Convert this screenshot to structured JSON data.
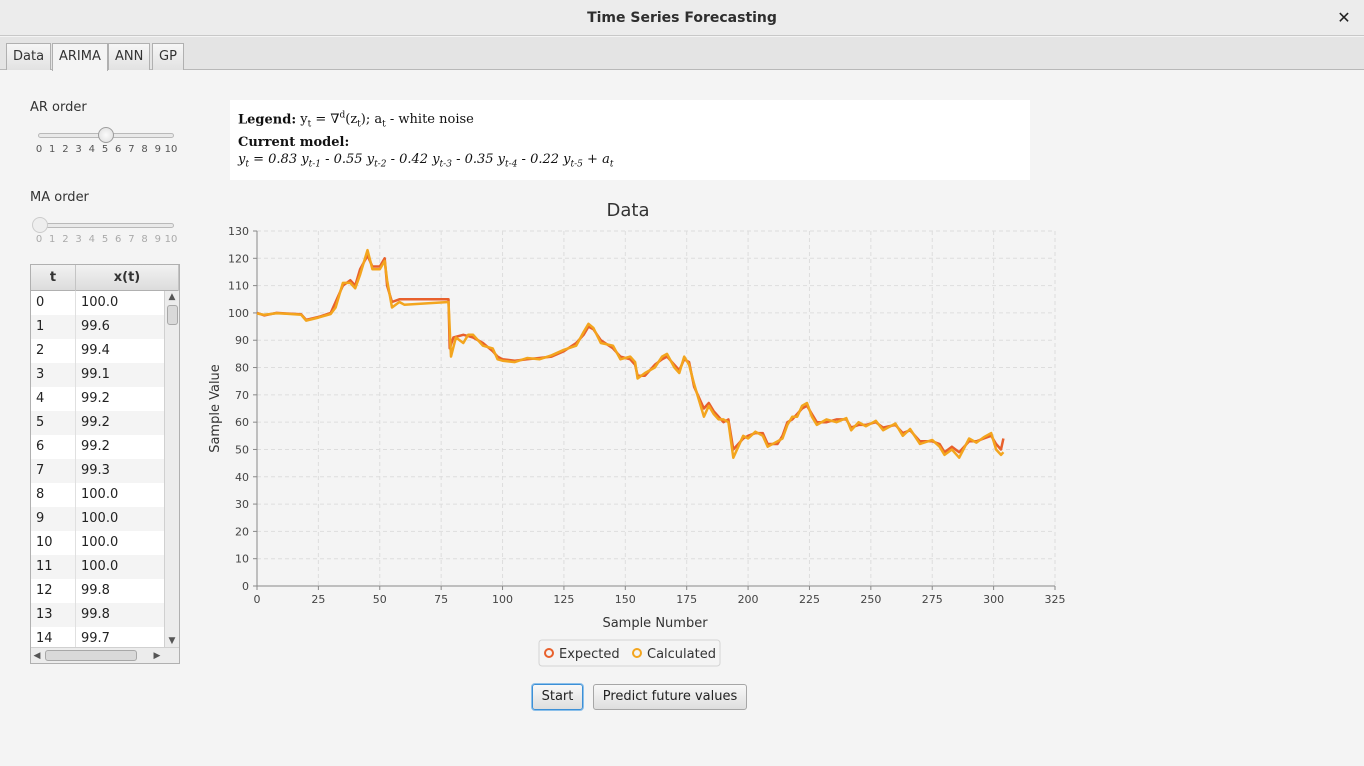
{
  "window": {
    "title": "Time Series Forecasting",
    "close_icon": "✕"
  },
  "tabs": [
    {
      "label": "Data",
      "active": false
    },
    {
      "label": "ARIMA",
      "active": true
    },
    {
      "label": "ANN",
      "active": false
    },
    {
      "label": "GP",
      "active": false
    }
  ],
  "ar_order": {
    "label": "AR order",
    "value": 5,
    "min": 0,
    "max": 10,
    "ticks": [
      "0",
      "1",
      "2",
      "3",
      "4",
      "5",
      "6",
      "7",
      "8",
      "9",
      "10"
    ],
    "enabled": true
  },
  "ma_order": {
    "label": "MA order",
    "value": 0,
    "min": 0,
    "max": 10,
    "ticks": [
      "0",
      "1",
      "2",
      "3",
      "4",
      "5",
      "6",
      "7",
      "8",
      "9",
      "10"
    ],
    "enabled": false
  },
  "table": {
    "columns": [
      "t",
      "x(t)"
    ],
    "rows": [
      [
        "0",
        "100.0"
      ],
      [
        "1",
        "99.6"
      ],
      [
        "2",
        "99.4"
      ],
      [
        "3",
        "99.1"
      ],
      [
        "4",
        "99.2"
      ],
      [
        "5",
        "99.2"
      ],
      [
        "6",
        "99.2"
      ],
      [
        "7",
        "99.3"
      ],
      [
        "8",
        "100.0"
      ],
      [
        "9",
        "100.0"
      ],
      [
        "10",
        "100.0"
      ],
      [
        "11",
        "100.0"
      ],
      [
        "12",
        "99.8"
      ],
      [
        "13",
        "99.8"
      ],
      [
        "14",
        "99.7"
      ]
    ]
  },
  "model": {
    "legend_label": "Legend:",
    "legend_text": "yt = ∇d(zt); at - white noise",
    "current_label": "Current model:",
    "equation": "yt = 0.83 yt-1 - 0.55 yt-2 - 0.42 yt-3 - 0.35 yt-4 - 0.22 yt-5 + at"
  },
  "buttons": {
    "start": "Start",
    "predict": "Predict future values"
  },
  "colors": {
    "expected": "#e8602c",
    "calculated": "#f3a51e",
    "grid": "#dddddd"
  },
  "chart_data": {
    "type": "line",
    "title": "Data",
    "xlabel": "Sample Number",
    "ylabel": "Sample Value",
    "xlim": [
      0,
      325
    ],
    "ylim": [
      0,
      130
    ],
    "xticks": [
      "0",
      "25",
      "50",
      "75",
      "100",
      "125",
      "150",
      "175",
      "200",
      "225",
      "250",
      "275",
      "300",
      "325"
    ],
    "yticks": [
      "0",
      "10",
      "20",
      "30",
      "40",
      "50",
      "60",
      "70",
      "80",
      "90",
      "100",
      "110",
      "120",
      "130"
    ],
    "grid": true,
    "legend_position": "bottom",
    "series": [
      {
        "name": "Expected",
        "points": [
          [
            0,
            100
          ],
          [
            3,
            99.1
          ],
          [
            8,
            100
          ],
          [
            12,
            99.8
          ],
          [
            18,
            99.5
          ],
          [
            20,
            97.5
          ],
          [
            25,
            98.5
          ],
          [
            30,
            100
          ],
          [
            32,
            104
          ],
          [
            35,
            110
          ],
          [
            38,
            112
          ],
          [
            40,
            110
          ],
          [
            42,
            116
          ],
          [
            45,
            121
          ],
          [
            47,
            117
          ],
          [
            50,
            117
          ],
          [
            52,
            120
          ],
          [
            53,
            110
          ],
          [
            55,
            104
          ],
          [
            58,
            105
          ],
          [
            60,
            105
          ],
          [
            78,
            105
          ],
          [
            78.5,
            87
          ],
          [
            80,
            91
          ],
          [
            84,
            92
          ],
          [
            86,
            91.5
          ],
          [
            88,
            91
          ],
          [
            92,
            89
          ],
          [
            96,
            86
          ],
          [
            98,
            84
          ],
          [
            100,
            83
          ],
          [
            105,
            82.5
          ],
          [
            110,
            83
          ],
          [
            115,
            83.5
          ],
          [
            120,
            84
          ],
          [
            125,
            86
          ],
          [
            130,
            89
          ],
          [
            133,
            92
          ],
          [
            135,
            95
          ],
          [
            137,
            94
          ],
          [
            140,
            90
          ],
          [
            145,
            87
          ],
          [
            148,
            84
          ],
          [
            152,
            83
          ],
          [
            154,
            81
          ],
          [
            155,
            77
          ],
          [
            158,
            77
          ],
          [
            162,
            81
          ],
          [
            165,
            83
          ],
          [
            167,
            84
          ],
          [
            170,
            81
          ],
          [
            172,
            79
          ],
          [
            174,
            83
          ],
          [
            176,
            82
          ],
          [
            178,
            73
          ],
          [
            180,
            69
          ],
          [
            182,
            65
          ],
          [
            184,
            67
          ],
          [
            186,
            64
          ],
          [
            188,
            62
          ],
          [
            190,
            60
          ],
          [
            192,
            61
          ],
          [
            194,
            50
          ],
          [
            196,
            52
          ],
          [
            198,
            54
          ],
          [
            200,
            55
          ],
          [
            203,
            56
          ],
          [
            206,
            56
          ],
          [
            208,
            52
          ],
          [
            212,
            52
          ],
          [
            214,
            55
          ],
          [
            216,
            60
          ],
          [
            218,
            61
          ],
          [
            220,
            63
          ],
          [
            222,
            65
          ],
          [
            224,
            66
          ],
          [
            226,
            63
          ],
          [
            228,
            60
          ],
          [
            232,
            60
          ],
          [
            236,
            61
          ],
          [
            240,
            61
          ],
          [
            242,
            58
          ],
          [
            245,
            59
          ],
          [
            248,
            59
          ],
          [
            252,
            60
          ],
          [
            255,
            58
          ],
          [
            260,
            59
          ],
          [
            263,
            56
          ],
          [
            266,
            57
          ],
          [
            270,
            53
          ],
          [
            275,
            53
          ],
          [
            278,
            52
          ],
          [
            280,
            49
          ],
          [
            283,
            51
          ],
          [
            286,
            49
          ],
          [
            290,
            53
          ],
          [
            293,
            53
          ],
          [
            296,
            54
          ],
          [
            299,
            55
          ],
          [
            301,
            52
          ],
          [
            303,
            50
          ],
          [
            304,
            54
          ]
        ]
      },
      {
        "name": "Calculated",
        "points": [
          [
            0,
            99.8
          ],
          [
            3,
            99.3
          ],
          [
            8,
            99.9
          ],
          [
            12,
            99.7
          ],
          [
            18,
            99.3
          ],
          [
            20,
            97.2
          ],
          [
            25,
            98.3
          ],
          [
            30,
            99.6
          ],
          [
            32,
            102
          ],
          [
            35,
            111
          ],
          [
            38,
            111
          ],
          [
            40,
            109
          ],
          [
            42,
            114
          ],
          [
            45,
            123
          ],
          [
            47,
            116
          ],
          [
            50,
            116
          ],
          [
            52,
            119
          ],
          [
            53,
            112
          ],
          [
            55,
            102
          ],
          [
            58,
            104
          ],
          [
            60,
            103
          ],
          [
            78,
            104
          ],
          [
            79,
            84
          ],
          [
            81,
            91
          ],
          [
            84,
            89
          ],
          [
            86,
            92
          ],
          [
            88,
            92
          ],
          [
            92,
            88
          ],
          [
            96,
            87
          ],
          [
            98,
            83
          ],
          [
            100,
            82.5
          ],
          [
            105,
            82
          ],
          [
            110,
            83.5
          ],
          [
            115,
            83
          ],
          [
            120,
            84.5
          ],
          [
            125,
            86.5
          ],
          [
            130,
            88
          ],
          [
            133,
            93
          ],
          [
            135,
            96
          ],
          [
            137,
            94.5
          ],
          [
            140,
            89
          ],
          [
            145,
            88
          ],
          [
            148,
            83
          ],
          [
            152,
            84
          ],
          [
            154,
            82
          ],
          [
            155,
            76
          ],
          [
            158,
            78
          ],
          [
            162,
            80
          ],
          [
            165,
            84
          ],
          [
            167,
            85
          ],
          [
            170,
            80
          ],
          [
            172,
            78
          ],
          [
            174,
            84
          ],
          [
            176,
            81
          ],
          [
            178,
            74
          ],
          [
            180,
            68
          ],
          [
            182,
            62
          ],
          [
            184,
            66
          ],
          [
            186,
            63
          ],
          [
            188,
            61
          ],
          [
            190,
            61
          ],
          [
            192,
            60
          ],
          [
            194,
            47
          ],
          [
            196,
            51
          ],
          [
            198,
            55
          ],
          [
            200,
            54
          ],
          [
            203,
            56.5
          ],
          [
            206,
            55
          ],
          [
            208,
            51
          ],
          [
            212,
            53
          ],
          [
            214,
            54
          ],
          [
            216,
            59
          ],
          [
            218,
            62
          ],
          [
            220,
            62
          ],
          [
            222,
            66
          ],
          [
            224,
            67
          ],
          [
            226,
            62
          ],
          [
            228,
            59
          ],
          [
            232,
            61
          ],
          [
            236,
            60
          ],
          [
            240,
            61.5
          ],
          [
            242,
            57
          ],
          [
            245,
            60
          ],
          [
            248,
            58.5
          ],
          [
            252,
            60.5
          ],
          [
            255,
            57
          ],
          [
            260,
            59.5
          ],
          [
            263,
            55
          ],
          [
            266,
            57.5
          ],
          [
            270,
            52
          ],
          [
            275,
            53.5
          ],
          [
            278,
            51
          ],
          [
            280,
            48
          ],
          [
            283,
            50
          ],
          [
            286,
            47
          ],
          [
            290,
            54
          ],
          [
            293,
            52.5
          ],
          [
            296,
            54.5
          ],
          [
            299,
            56
          ],
          [
            301,
            50
          ],
          [
            303,
            48
          ],
          [
            304,
            49
          ]
        ]
      }
    ]
  }
}
